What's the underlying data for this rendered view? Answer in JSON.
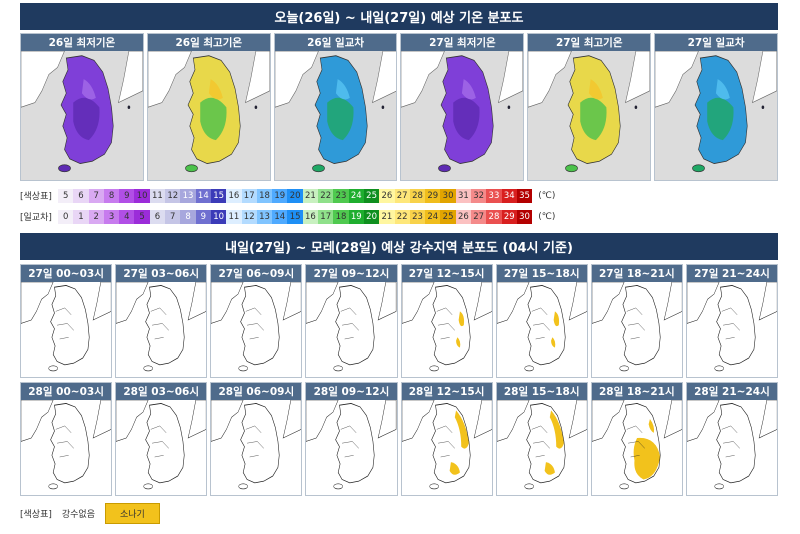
{
  "temp_section": {
    "title": "오늘(26일) ~ 내일(27일) 예상 기온 분포도",
    "panels": [
      {
        "label": "26일 최저기온",
        "theme": "min"
      },
      {
        "label": "26일 최고기온",
        "theme": "max"
      },
      {
        "label": "26일 일교차",
        "theme": "range"
      },
      {
        "label": "27일 최저기온",
        "theme": "min"
      },
      {
        "label": "27일 최고기온",
        "theme": "max"
      },
      {
        "label": "27일 일교차",
        "theme": "range"
      }
    ],
    "color_legend": {
      "label": "[색상표]",
      "unit": "(℃)",
      "values": [
        "5",
        "6",
        "7",
        "8",
        "9",
        "10",
        "11",
        "12",
        "13",
        "14",
        "15",
        "16",
        "17",
        "18",
        "19",
        "20",
        "21",
        "22",
        "23",
        "24",
        "25",
        "26",
        "27",
        "28",
        "29",
        "30",
        "31",
        "32",
        "33",
        "34",
        "35"
      ],
      "colors": [
        "#f3eef8",
        "#e9d6f6",
        "#d9a9f2",
        "#c77bee",
        "#b14fe6",
        "#9b2cd9",
        "#dcdcf0",
        "#c5c5e6",
        "#a7a7dd",
        "#6f6fd0",
        "#3b3bb8",
        "#ddeeff",
        "#b3dbff",
        "#80c4ff",
        "#4faaff",
        "#1e8ff5",
        "#c8f0c0",
        "#8fe08a",
        "#4fc94f",
        "#1fae2f",
        "#0f8f1f",
        "#fff6a0",
        "#fee77a",
        "#f8d24a",
        "#f0bd1c",
        "#e2a400",
        "#fbc1c1",
        "#f48a8a",
        "#ea5050",
        "#d81f1f",
        "#b30000"
      ]
    },
    "range_legend": {
      "label": "[일교차]",
      "unit": "(℃)",
      "values": [
        "0",
        "1",
        "2",
        "3",
        "4",
        "5",
        "6",
        "7",
        "8",
        "9",
        "10",
        "11",
        "12",
        "13",
        "14",
        "15",
        "16",
        "17",
        "18",
        "19",
        "20",
        "21",
        "22",
        "23",
        "24",
        "25",
        "26",
        "27",
        "28",
        "29",
        "30"
      ],
      "colors": [
        "#f3eef8",
        "#e9d6f6",
        "#d9a9f2",
        "#c77bee",
        "#b14fe6",
        "#9b2cd9",
        "#dcdcf0",
        "#c5c5e6",
        "#a7a7dd",
        "#6f6fd0",
        "#3b3bb8",
        "#ddeeff",
        "#b3dbff",
        "#80c4ff",
        "#4faaff",
        "#1e8ff5",
        "#c8f0c0",
        "#8fe08a",
        "#4fc94f",
        "#1fae2f",
        "#0f8f1f",
        "#fff6a0",
        "#fee77a",
        "#f8d24a",
        "#f0bd1c",
        "#e2a400",
        "#fbc1c1",
        "#f48a8a",
        "#ea5050",
        "#d81f1f",
        "#b30000"
      ]
    }
  },
  "precip_section": {
    "title": "내일(27일) ~ 모레(28일) 예상 강수지역 분포도 (04시 기준)",
    "row1": [
      {
        "label": "27일 00~03시",
        "rain": "none"
      },
      {
        "label": "27일 03~06시",
        "rain": "none"
      },
      {
        "label": "27일 06~09시",
        "rain": "none"
      },
      {
        "label": "27일 09~12시",
        "rain": "none"
      },
      {
        "label": "27일 12~15시",
        "rain": "light"
      },
      {
        "label": "27일 15~18시",
        "rain": "light"
      },
      {
        "label": "27일 18~21시",
        "rain": "none"
      },
      {
        "label": "27일 21~24시",
        "rain": "none"
      }
    ],
    "row2": [
      {
        "label": "28일 00~03시",
        "rain": "none"
      },
      {
        "label": "28일 03~06시",
        "rain": "none"
      },
      {
        "label": "28일 06~09시",
        "rain": "none"
      },
      {
        "label": "28일 09~12시",
        "rain": "none"
      },
      {
        "label": "28일 12~15시",
        "rain": "moderate"
      },
      {
        "label": "28일 15~18시",
        "rain": "moderate"
      },
      {
        "label": "28일 18~21시",
        "rain": "heavy"
      },
      {
        "label": "28일 21~24시",
        "rain": "none"
      }
    ],
    "legend": {
      "label": "[색상표]",
      "none": "강수없음",
      "shower": "소나기",
      "shower_color": "#f2c21c"
    }
  }
}
